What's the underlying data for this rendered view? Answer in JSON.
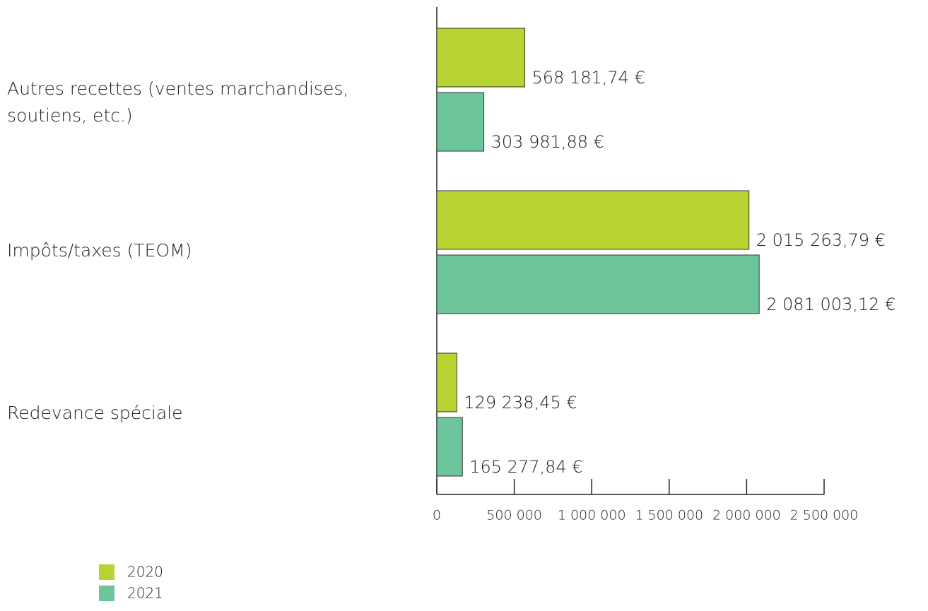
{
  "chart_data": {
    "type": "hbar",
    "categories": [
      "Autres recettes (ventes marchandises, soutiens, etc.)",
      "Impôts/taxes (TEOM)",
      "Redevance spéciale"
    ],
    "series": [
      {
        "name": "2020",
        "color": "#b8d432",
        "values": [
          568181.74,
          2015263.79,
          129238.45
        ],
        "value_labels": [
          "568 181,74 €",
          "2 015 263,79 €",
          "129 238,45 €"
        ]
      },
      {
        "name": "2021",
        "color": "#6cc59b",
        "values": [
          303981.88,
          2081003.12,
          165277.84
        ],
        "value_labels": [
          "303 981,88 €",
          "2 081 003,12 €",
          "165 277,84 €"
        ]
      }
    ],
    "xlim": [
      0,
      2500000
    ],
    "xticks": [
      0,
      {
        "value": 500000,
        "label": "500 000"
      },
      {
        "value": 1000000,
        "label": "1 000 000"
      },
      {
        "value": 1500000,
        "label": "1 500 000"
      },
      {
        "value": 2000000,
        "label": "2 000 000"
      },
      {
        "value": 2500000,
        "label": "2 500 000"
      }
    ],
    "legend": "bottom-left"
  }
}
